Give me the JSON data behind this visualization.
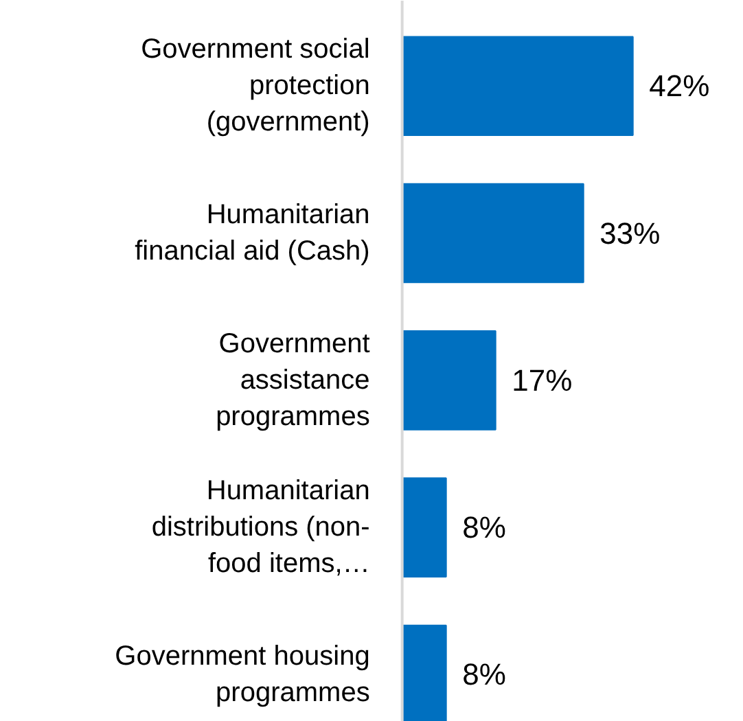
{
  "chart_data": {
    "type": "bar",
    "orientation": "horizontal",
    "categories": [
      "Government social\nprotection\n(government)",
      "Humanitarian\nfinancial aid (Cash)",
      "Government\nassistance\nprogrammes",
      "Humanitarian\ndistributions (non-\nfood items,…",
      "Government housing\nprogrammes"
    ],
    "values": [
      42,
      33,
      17,
      8,
      8
    ],
    "value_labels": [
      "42%",
      "33%",
      "17%",
      "8%",
      "8%"
    ],
    "color": "#0070c0"
  }
}
